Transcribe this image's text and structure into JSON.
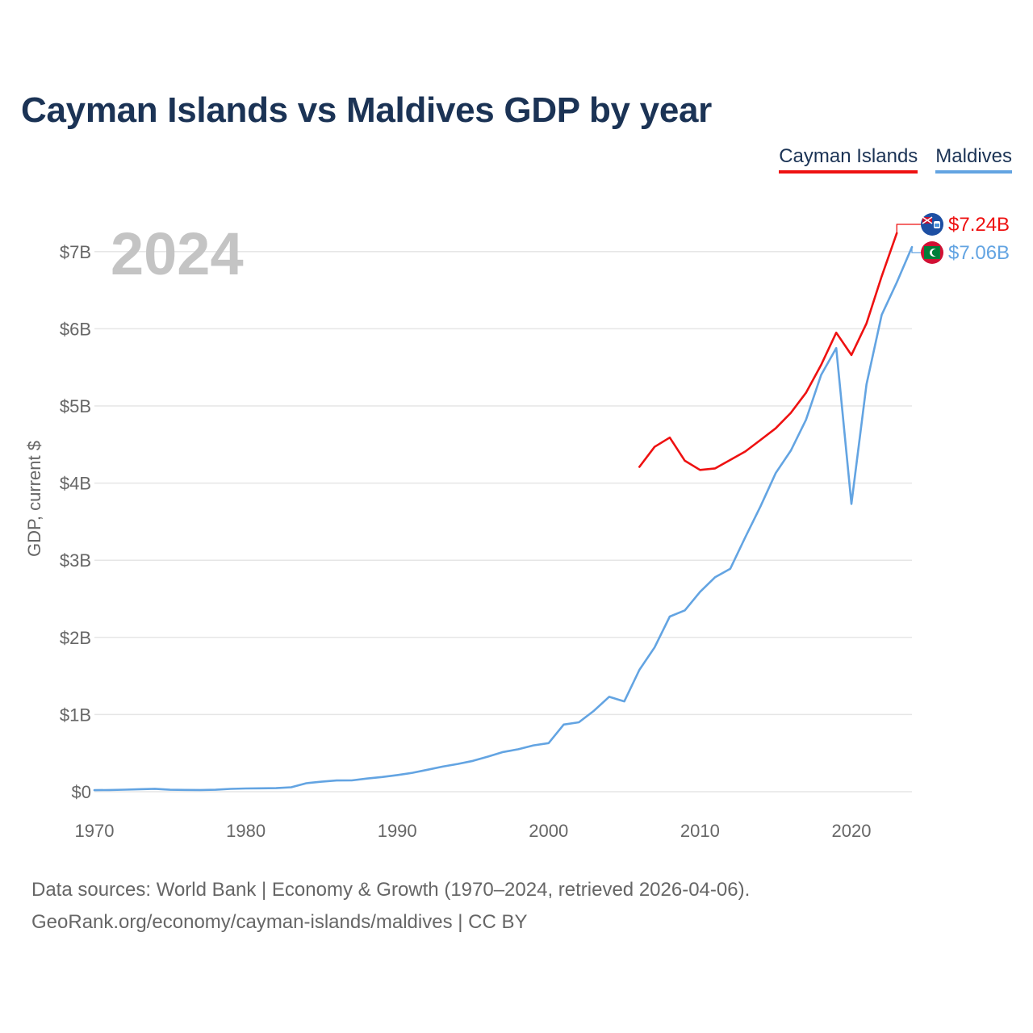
{
  "page": {
    "title": "Cayman Islands vs Maldives GDP by year",
    "source_line1": "Data sources: World Bank | Economy & Growth (1970–2024, retrieved 2026-04-06).",
    "source_line2": "GeoRank.org/economy/cayman-islands/maldives | CC BY"
  },
  "legend": [
    {
      "label": "Cayman Islands",
      "color": "#ee1111"
    },
    {
      "label": "Maldives",
      "color": "#63a4e2"
    }
  ],
  "flags": {
    "cayman": "cayman-islands-flag-icon",
    "maldives": "maldives-flag-icon"
  },
  "chart_data": {
    "type": "line",
    "title": "Cayman Islands vs Maldives GDP by year",
    "xlabel": "",
    "ylabel": "GDP, current $",
    "year_label": "2024",
    "xlim": [
      1970,
      2024
    ],
    "ylim": [
      0,
      7.3
    ],
    "x_ticks": [
      1970,
      1980,
      1990,
      2000,
      2010,
      2020
    ],
    "y_ticks": [
      0,
      1,
      2,
      3,
      4,
      5,
      6,
      7
    ],
    "y_tick_labels": [
      "$0",
      "$1B",
      "$2B",
      "$3B",
      "$4B",
      "$5B",
      "$6B",
      "$7B"
    ],
    "series": [
      {
        "name": "Cayman Islands",
        "color": "#ee1111",
        "end_label": "$7.24B",
        "x": [
          2006,
          2007,
          2008,
          2009,
          2010,
          2011,
          2012,
          2013,
          2014,
          2015,
          2016,
          2017,
          2018,
          2019,
          2020,
          2021,
          2022,
          2023
        ],
        "values": [
          4.21,
          4.47,
          4.59,
          4.29,
          4.17,
          4.19,
          4.3,
          4.41,
          4.56,
          4.71,
          4.91,
          5.17,
          5.53,
          5.95,
          5.66,
          6.07,
          6.68,
          7.24
        ]
      },
      {
        "name": "Maldives",
        "color": "#63a4e2",
        "end_label": "$7.06B",
        "x": [
          1970,
          1971,
          1972,
          1973,
          1974,
          1975,
          1976,
          1977,
          1978,
          1979,
          1980,
          1981,
          1982,
          1983,
          1984,
          1985,
          1986,
          1987,
          1988,
          1989,
          1990,
          1991,
          1992,
          1993,
          1994,
          1995,
          1996,
          1997,
          1998,
          1999,
          2000,
          2001,
          2002,
          2003,
          2004,
          2005,
          2006,
          2007,
          2008,
          2009,
          2010,
          2011,
          2012,
          2013,
          2014,
          2015,
          2016,
          2017,
          2018,
          2019,
          2020,
          2021,
          2022,
          2023,
          2024
        ],
        "values": [
          0.02,
          0.022,
          0.026,
          0.032,
          0.038,
          0.025,
          0.023,
          0.022,
          0.025,
          0.037,
          0.042,
          0.044,
          0.046,
          0.058,
          0.11,
          0.13,
          0.145,
          0.146,
          0.17,
          0.19,
          0.215,
          0.245,
          0.285,
          0.325,
          0.36,
          0.4,
          0.455,
          0.515,
          0.55,
          0.6,
          0.63,
          0.87,
          0.9,
          1.05,
          1.23,
          1.17,
          1.58,
          1.87,
          2.27,
          2.35,
          2.59,
          2.78,
          2.89,
          3.3,
          3.7,
          4.13,
          4.42,
          4.82,
          5.4,
          5.75,
          3.73,
          5.28,
          6.18,
          6.6,
          7.06
        ]
      }
    ]
  }
}
